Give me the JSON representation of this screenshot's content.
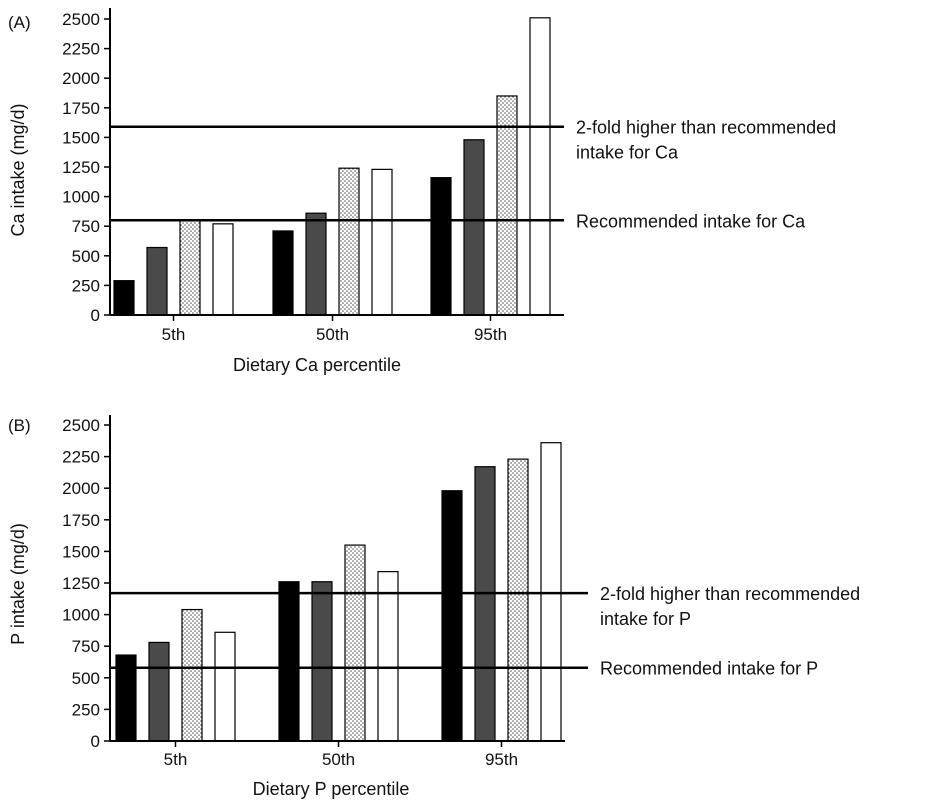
{
  "chart_data": [
    {
      "type": "bar",
      "panel_label": "(A)",
      "categories": [
        "5th",
        "50th",
        "95th"
      ],
      "series": [
        {
          "values": [
            290,
            710,
            1160
          ],
          "fill": "#000000"
        },
        {
          "values": [
            570,
            860,
            1480
          ],
          "fill": "#4a4a4a"
        },
        {
          "values": [
            800,
            1240,
            1850
          ],
          "fill": "dotted"
        },
        {
          "values": [
            770,
            1230,
            2510
          ],
          "fill": "#ffffff"
        }
      ],
      "xlabel": "Dietary Ca percentile",
      "ylabel": "Ca intake (mg/d)",
      "ylim": [
        0,
        2500
      ],
      "yticks": [
        "0",
        "250",
        "500",
        "750",
        "1000",
        "1250",
        "1500",
        "1750",
        "2000",
        "2250",
        "2500"
      ],
      "reference_lines": [
        {
          "value": 1590,
          "label_lines": [
            "2-fold higher than recommended",
            "intake for Ca"
          ]
        },
        {
          "value": 800,
          "label_lines": [
            "Recommended intake for Ca"
          ]
        }
      ],
      "grid": false,
      "legend": "none"
    },
    {
      "type": "bar",
      "panel_label": "(B)",
      "categories": [
        "5th",
        "50th",
        "95th"
      ],
      "series": [
        {
          "values": [
            680,
            1260,
            1980
          ],
          "fill": "#000000"
        },
        {
          "values": [
            780,
            1260,
            2170
          ],
          "fill": "#4a4a4a"
        },
        {
          "values": [
            1040,
            1550,
            2230
          ],
          "fill": "dotted"
        },
        {
          "values": [
            860,
            1340,
            2360
          ],
          "fill": "#ffffff"
        }
      ],
      "xlabel": "Dietary P percentile",
      "ylabel": "P intake (mg/d)",
      "ylim": [
        0,
        2500
      ],
      "yticks": [
        "0",
        "250",
        "500",
        "750",
        "1000",
        "1250",
        "1500",
        "1750",
        "2000",
        "2250",
        "2500"
      ],
      "reference_lines": [
        {
          "value": 1170,
          "label_lines": [
            "2-fold higher than recommended",
            "intake for P"
          ]
        },
        {
          "value": 580,
          "label_lines": [
            "Recommended intake for P"
          ]
        }
      ],
      "grid": false,
      "legend": "none"
    }
  ]
}
